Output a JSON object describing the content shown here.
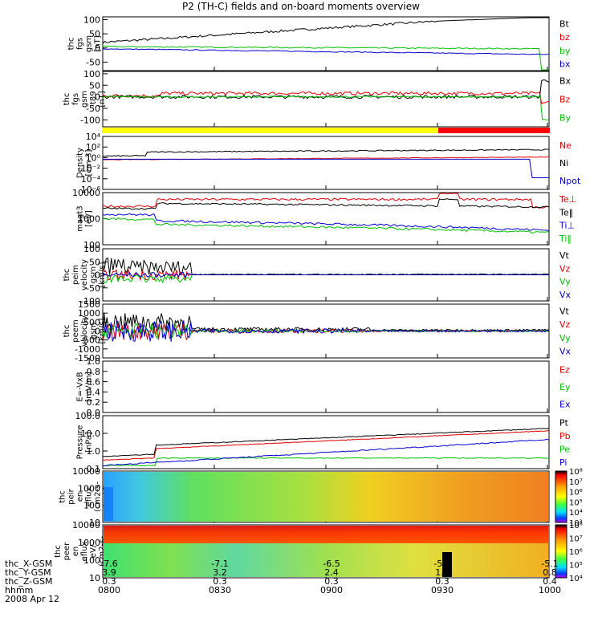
{
  "title": "P2 (TH-C) fields and on-board moments overview",
  "colors": {
    "black": "#000000",
    "red": "#e00000",
    "green": "#00c000",
    "blue": "#0000d0",
    "yellow": "#ffff00",
    "orange": "#ff8000",
    "cyan": "#00ffff"
  },
  "status_bar": {
    "segments": [
      {
        "from": 0,
        "to": 0.75,
        "color": "#ffff00"
      },
      {
        "from": 0.75,
        "to": 1.0,
        "color": "#ff0000"
      }
    ]
  },
  "panels": [
    {
      "id": "fgs",
      "ylabel": [
        "thc",
        "fgs",
        "gsm",
        "[nT]"
      ],
      "ytick_labels": [
        "100",
        "50",
        "0",
        "-50"
      ],
      "ylim": [
        -80,
        110
      ],
      "ytick_values": [
        100,
        50,
        0,
        -50
      ],
      "legend": [
        {
          "text": "Bt",
          "color": "#000000"
        },
        {
          "text": "bz",
          "color": "#e00000"
        },
        {
          "text": "by",
          "color": "#00c000"
        },
        {
          "text": "bx",
          "color": "#0000d0"
        }
      ]
    },
    {
      "id": "fgs_t89",
      "ylabel": [
        "thc",
        "fgs",
        "gsm",
        "-t89",
        "[nT]"
      ],
      "ytick_labels": [
        "100",
        "50",
        "0",
        "-50",
        "-100"
      ],
      "ylim": [
        -130,
        110
      ],
      "ytick_values": [
        100,
        50,
        0,
        -50,
        -100
      ],
      "legend": [
        {
          "text": "Bx",
          "color": "#000000"
        },
        {
          "text": "Bz",
          "color": "#e00000"
        },
        {
          "text": "By",
          "color": "#00c000"
        }
      ]
    },
    {
      "id": "density",
      "ylabel": [
        "Density",
        "[cm-3]"
      ],
      "ytick_labels": [
        "10⁴",
        "10²",
        "10⁰",
        "10⁻²",
        "10⁻⁴",
        "10⁻⁶"
      ],
      "log": true,
      "ylim_exp": [
        -6,
        4
      ],
      "legend": [
        {
          "text": "Ne",
          "color": "#e00000"
        },
        {
          "text": "Ni",
          "color": "#000000"
        },
        {
          "text": "Npot",
          "color": "#0000d0"
        }
      ]
    },
    {
      "id": "temperature",
      "ylabel": [
        "magt3",
        "[eV]"
      ],
      "ytick_labels": [
        "10000",
        "1000",
        "100"
      ],
      "log": true,
      "ylim_exp": [
        2,
        4
      ],
      "legend": [
        {
          "text": "Te⊥",
          "color": "#e00000"
        },
        {
          "text": "Te‖",
          "color": "#000000"
        },
        {
          "text": "Ti⊥",
          "color": "#0000d0"
        },
        {
          "text": "Ti‖",
          "color": "#00c000"
        }
      ]
    },
    {
      "id": "peim_velocity",
      "ylabel": [
        "thc",
        "peim",
        "velocity",
        "gsm",
        "[km/s]"
      ],
      "ytick_labels": [
        "100",
        "50",
        "0",
        "-50",
        "-100"
      ],
      "ylim": [
        -100,
        100
      ],
      "ytick_values": [
        100,
        50,
        0,
        -50,
        -100
      ],
      "legend": [
        {
          "text": "Vt",
          "color": "#000000"
        },
        {
          "text": "Vz",
          "color": "#e00000"
        },
        {
          "text": "Vy",
          "color": "#00c000"
        },
        {
          "text": "Vx",
          "color": "#0000d0"
        }
      ]
    },
    {
      "id": "peem_velocity",
      "ylabel": [
        "thc",
        "peem",
        "velocity",
        "gsm",
        "[km/s]"
      ],
      "ytick_labels": [
        "1500",
        "1000",
        "500",
        "0",
        "-500",
        "-1000",
        "-1500"
      ],
      "ylim": [
        -1500,
        1500
      ],
      "ytick_values": [
        1500,
        1000,
        500,
        0,
        -500,
        -1000,
        -1500
      ],
      "legend": [
        {
          "text": "Vt",
          "color": "#000000"
        },
        {
          "text": "Vz",
          "color": "#e00000"
        },
        {
          "text": "Vy",
          "color": "#00c000"
        },
        {
          "text": "Vx",
          "color": "#0000d0"
        }
      ]
    },
    {
      "id": "e_field",
      "ylabel": [
        "E=-VxB",
        "[mV/m]"
      ],
      "ytick_labels": [
        "1.0",
        "0.8",
        "0.6",
        "0.4",
        "0.2",
        "0.0"
      ],
      "ylim": [
        0,
        1
      ],
      "ytick_values": [
        1.0,
        0.8,
        0.6,
        0.4,
        0.2,
        0.0
      ],
      "legend": [
        {
          "text": "Ez",
          "color": "#e00000"
        },
        {
          "text": "Ey",
          "color": "#00c000"
        },
        {
          "text": "Ex",
          "color": "#0000d0"
        }
      ]
    },
    {
      "id": "pressure",
      "ylabel": [
        "Pressure",
        "[nPa]"
      ],
      "ytick_labels": [
        "100.0",
        "10.0",
        "1.0",
        "0.1"
      ],
      "log": true,
      "ylim_exp": [
        -1,
        2
      ],
      "legend": [
        {
          "text": "Pt",
          "color": "#000000"
        },
        {
          "text": "Pb",
          "color": "#e00000"
        },
        {
          "text": "Pe",
          "color": "#00c000"
        },
        {
          "text": "Pi",
          "color": "#0000d0"
        }
      ]
    },
    {
      "id": "peir_spec",
      "ylabel": [
        "thc",
        "peir",
        "en",
        "eflux",
        "(cm2-s-",
        "sr-eV)"
      ],
      "ytick_labels": [
        "10000",
        "1000",
        "100",
        "10"
      ],
      "colorbar_labels": [
        "10⁸",
        "10⁷",
        "10⁶",
        "10⁵",
        "10⁴",
        "10³"
      ]
    },
    {
      "id": "peer_spec",
      "ylabel": [
        "thc",
        "peer",
        "en",
        "eflux",
        "eV/",
        "(cm2-s-",
        "sr-eV)"
      ],
      "ytick_labels": [
        "10000",
        "1000",
        "100",
        "10"
      ],
      "colorbar_labels": [
        "10⁸",
        "10⁷",
        "10⁶",
        "10⁵",
        "10⁴"
      ]
    }
  ],
  "footer": {
    "rows": [
      {
        "label": "thc_X-GSM",
        "values": [
          "-7.6",
          "-7.1",
          "-6.5",
          "-5.9",
          "-5.1"
        ]
      },
      {
        "label": "thc_Y-GSM",
        "values": [
          "3.9",
          "3.2",
          "2.4",
          "1.6",
          "0.8"
        ]
      },
      {
        "label": "thc_Z-GSM",
        "values": [
          "0.3",
          "0.3",
          "0.3",
          "0.3",
          "0.4"
        ]
      },
      {
        "label": "hhmm",
        "values": [
          "0800",
          "0830",
          "0900",
          "0930",
          "1000"
        ]
      }
    ],
    "date": "2008 Apr 12"
  },
  "chart_data": {
    "type": "line",
    "title": "P2 (TH-C) fields and on-board moments overview",
    "x_ticks": [
      "0800",
      "0830",
      "0900",
      "0930",
      "1000"
    ],
    "series": [
      {
        "name": "Bt",
        "x": [
          "0800",
          "0810",
          "0830",
          "0900",
          "0930",
          "1000"
        ],
        "y": [
          20,
          30,
          60,
          80,
          95,
          110
        ]
      },
      {
        "name": "by",
        "x": [
          "0800",
          "0830",
          "0900",
          "0930",
          "1000"
        ],
        "y": [
          5,
          5,
          5,
          5,
          -80
        ]
      },
      {
        "name": "bx",
        "x": [
          "0800",
          "0830",
          "0900",
          "0930",
          "1000"
        ],
        "y": [
          -5,
          -10,
          -15,
          -20,
          -20
        ]
      },
      {
        "name": "Ni",
        "x": [
          "0800",
          "0830",
          "0900",
          "0930",
          "1000"
        ],
        "y": [
          1,
          10,
          10,
          20,
          30
        ]
      },
      {
        "name": "Npot",
        "x": [
          "0800",
          "0830",
          "0900",
          "0930",
          "1000"
        ],
        "y": [
          0.5,
          0.5,
          0.5,
          0.5,
          0.0001
        ]
      },
      {
        "name": "Te⊥",
        "x": [
          "0800",
          "0830",
          "0900",
          "0930",
          "1000"
        ],
        "y": [
          3000,
          5000,
          4000,
          6000,
          2000
        ]
      },
      {
        "name": "Ti‖",
        "x": [
          "0800",
          "0830",
          "0900",
          "0930",
          "1000"
        ],
        "y": [
          700,
          500,
          400,
          300,
          250
        ]
      },
      {
        "name": "Pt",
        "x": [
          "0800",
          "0830",
          "0900",
          "0930",
          "1000"
        ],
        "y": [
          0.7,
          1.5,
          3,
          8,
          20
        ]
      },
      {
        "name": "Pi",
        "x": [
          "0800",
          "0830",
          "0900",
          "0930",
          "1000"
        ],
        "y": [
          0.15,
          0.3,
          0.8,
          2,
          5
        ]
      }
    ]
  }
}
